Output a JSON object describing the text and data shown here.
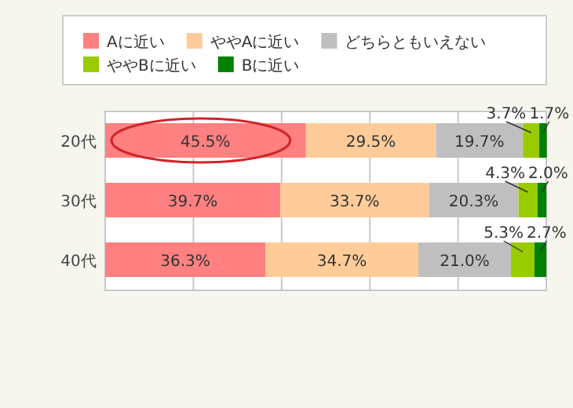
{
  "chart_data": {
    "type": "bar",
    "orientation": "horizontal",
    "stacked": true,
    "legend": "top",
    "grid": "x",
    "tick_labels": "y",
    "xlim": [
      0,
      100
    ],
    "categories": [
      "20代",
      "30代",
      "40代"
    ],
    "series": [
      {
        "name": "Aに近い",
        "color": "#ff8080",
        "values": [
          45.5,
          39.7,
          36.3
        ],
        "value_labels": [
          "45.5%",
          "39.7%",
          "36.3%"
        ]
      },
      {
        "name": "ややAに近い",
        "color": "#ffcc99",
        "values": [
          29.5,
          33.7,
          34.7
        ],
        "value_labels": [
          "29.5%",
          "33.7%",
          "34.7%"
        ]
      },
      {
        "name": "どちらともいえない",
        "color": "#bfbfbf",
        "values": [
          19.7,
          20.3,
          21.0
        ],
        "value_labels": [
          "19.7%",
          "20.3%",
          "21.0%"
        ]
      },
      {
        "name": "ややBに近い",
        "color": "#99cc00",
        "values": [
          3.7,
          4.3,
          5.3
        ],
        "value_labels": [
          "3.7%",
          "4.3%",
          "5.3%"
        ]
      },
      {
        "name": "Bに近い",
        "color": "#008000",
        "values": [
          1.7,
          2.0,
          2.7
        ],
        "value_labels": [
          "1.7%",
          "2.0%",
          "2.7%"
        ]
      }
    ]
  }
}
